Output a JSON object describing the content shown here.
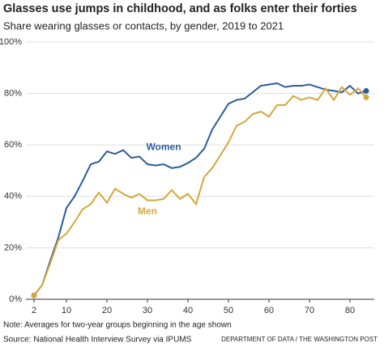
{
  "chart_data": {
    "type": "line",
    "title": "Glasses use jumps in childhood, and as folks enter their forties",
    "subtitle": "Share wearing glasses or contacts, by gender, 2019 to 2021",
    "note": "Note: Averages for two-year groups beginning in the age shown",
    "source": "Source: National Health Interview Survey via IPUMS",
    "credit": "DEPARTMENT OF DATA / THE WASHINGTON POST",
    "x": [
      2,
      4,
      6,
      8,
      10,
      12,
      14,
      16,
      18,
      20,
      22,
      24,
      26,
      28,
      30,
      32,
      34,
      36,
      38,
      40,
      42,
      44,
      46,
      48,
      50,
      52,
      54,
      56,
      58,
      60,
      62,
      64,
      66,
      68,
      70,
      72,
      74,
      76,
      78,
      80,
      82,
      84
    ],
    "series": [
      {
        "name": "Women",
        "color": "#2a5c9c",
        "values": [
          1.5,
          5.5,
          15,
          24,
          35.5,
          40,
          46,
          52.5,
          53.5,
          57.5,
          56.5,
          58,
          55,
          55.5,
          52.5,
          52,
          52.5,
          51,
          51.5,
          53,
          55,
          58.5,
          66,
          71,
          76,
          77.5,
          78,
          80.5,
          83,
          83.5,
          84,
          82.5,
          83,
          83,
          83.5,
          82.5,
          81.5,
          81,
          80.5,
          83,
          80,
          81
        ]
      },
      {
        "name": "Men",
        "color": "#d4a73c",
        "values": [
          1.5,
          5.5,
          14,
          23,
          25.5,
          30,
          35,
          37,
          41.5,
          37.5,
          43,
          41,
          39.5,
          41,
          38.5,
          38.5,
          39,
          42.5,
          39,
          41,
          37,
          47.5,
          51,
          56,
          61,
          67.5,
          69,
          72,
          73,
          71,
          75.5,
          75.5,
          79,
          77.5,
          78.5,
          77.5,
          82,
          77.5,
          82.5,
          79.5,
          82,
          78.5
        ]
      }
    ],
    "xlim": [
      0,
      86
    ],
    "xticks": [
      2,
      10,
      20,
      30,
      40,
      50,
      60,
      70,
      80
    ],
    "ylim": [
      0,
      100
    ],
    "yticks": [
      {
        "value": 0,
        "label": "0%"
      },
      {
        "value": 20,
        "label": "20%"
      },
      {
        "value": 40,
        "label": "40%"
      },
      {
        "value": 60,
        "label": "60%"
      },
      {
        "value": 80,
        "label": "80%"
      },
      {
        "value": 100,
        "label": "100%"
      }
    ],
    "grid": true
  }
}
